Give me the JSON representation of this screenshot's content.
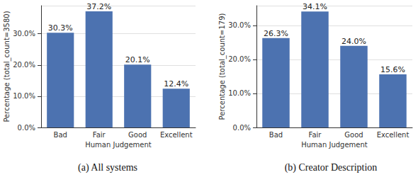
{
  "chart_data": [
    {
      "type": "bar",
      "title": "(a) All systems",
      "x_label": "Human Judgement",
      "y_label": "Percentage (total_count=3580)",
      "categories": [
        "Bad",
        "Fair",
        "Good",
        "Excellent"
      ],
      "values": [
        30.3,
        37.2,
        20.1,
        12.4
      ],
      "value_labels": [
        "30.3%",
        "37.2%",
        "20.1%",
        "12.4%"
      ],
      "data_labels": true,
      "color": "#4c72b0",
      "ylim": [
        0,
        39
      ],
      "yticks": [
        {
          "value": 0,
          "label": "0.0%"
        },
        {
          "value": 10,
          "label": "10.0%"
        },
        {
          "value": 20,
          "label": "20.0%"
        },
        {
          "value": 30,
          "label": "30.0%"
        }
      ],
      "grid": true
    },
    {
      "type": "bar",
      "title": "(b) Creator Description",
      "x_label": "Human Judgement",
      "y_label": "Percentage (total_count=179)",
      "categories": [
        "Bad",
        "Fair",
        "Good",
        "Excellent"
      ],
      "values": [
        26.3,
        34.1,
        24.0,
        15.6
      ],
      "value_labels": [
        "26.3%",
        "34.1%",
        "24.0%",
        "15.6%"
      ],
      "data_labels": true,
      "color": "#4c72b0",
      "ylim": [
        0,
        35.8
      ],
      "yticks": [
        {
          "value": 0,
          "label": "0.0%"
        },
        {
          "value": 10,
          "label": "10.0%"
        },
        {
          "value": 20,
          "label": "20.0%"
        },
        {
          "value": 30,
          "label": "30.0%"
        }
      ],
      "grid": true
    }
  ]
}
